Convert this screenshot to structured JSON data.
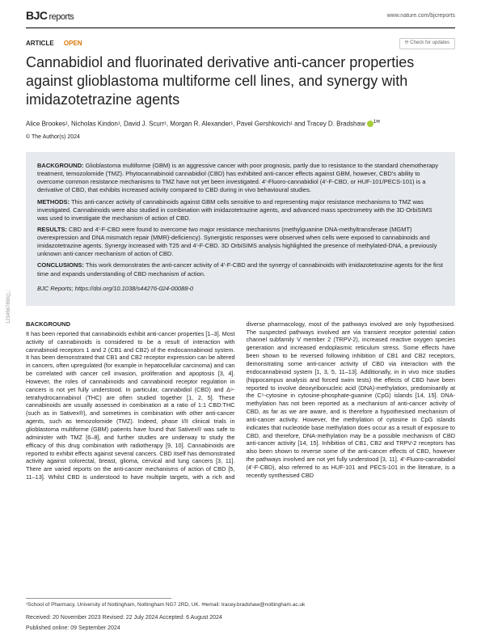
{
  "header": {
    "logo_main": "BJC",
    "logo_sub": "reports",
    "url": "www.nature.com/bjcreports"
  },
  "updates_badge": "Check for updates",
  "article": {
    "type": "ARTICLE",
    "open": "OPEN",
    "title": "Cannabidiol and fluorinated derivative anti-cancer properties against glioblastoma multiforme cell lines, and synergy with imidazotetrazine agents",
    "authors_html": "Alice Brookes¹, Nicholas Kindon¹, David J. Scurr¹, Morgan R. Alexander¹, Pavel Gershkovich¹ and Tracey D. Bradshaw",
    "author_sup": "1✉",
    "copyright": "© The Author(s) 2024"
  },
  "abstract": {
    "background_label": "BACKGROUND:",
    "background": "Glioblastoma multiforme (GBM) is an aggressive cancer with poor prognosis, partly due to resistance to the standard chemotherapy treatment, temozolomide (TMZ). Phytocannabinoid cannabidiol (CBD) has exhibited anti-cancer effects against GBM, however, CBD's ability to overcome common resistance mechanisms to TMZ have not yet been investigated. 4'-Fluoro-cannabidiol (4'-F-CBD, or HUF-101/PECS-101) is a derivative of CBD, that exhibits increased activity compared to CBD during in vivo behavioural studies.",
    "methods_label": "METHODS:",
    "methods": "This anti-cancer activity of cannabinoids against GBM cells sensitive to and representing major resistance mechanisms to TMZ was investigated. Cannabinoids were also studied in combination with imidazotetrazine agents, and advanced mass spectrometry with the 3D OrbiSIMS was used to investigate the mechanism of action of CBD.",
    "results_label": "RESULTS:",
    "results": "CBD and 4'-F-CBD were found to overcome two major resistance mechanisms (methylguanine DNA-methyltransferase (MGMT) overexpression and DNA mismatch repair (MMR)-deficiency). Synergistic responses were observed when cells were exposed to cannabinoids and imidazotetrazine agents. Synergy increased with T25 and 4'-F-CBD. 3D OrbiSIMS analysis highlighted the presence of methylated-DNA, a previously unknown anti-cancer mechanism of action of CBD.",
    "conclusions_label": "CONCLUSIONS:",
    "conclusions": "This work demonstrates the anti-cancer activity of 4'-F-CBD and the synergy of cannabinoids with imidazotetrazine agents for the first time and expands understanding of CBD mechanism of action.",
    "doi_journal": "BJC Reports",
    "doi": "; https://doi.org/10.1038/s44276-024-00088-0"
  },
  "body": {
    "heading": "BACKGROUND",
    "col1": "It has been reported that cannabinoids exhibit anti-cancer properties [1–3]. Most activity of cannabinoids is considered to be a result of interaction with cannabinoid receptors 1 and 2 (CB1 and CB2) of the endocannabinoid system. It has been demonstrated that CB1 and CB2 receptor expression can be altered in cancers, often upregulated (for example in hepatocellular carcinoma) and can be correlated with cancer cell invasion, proliferation and apoptosis [3, 4]. However, the roles of cannabinoids and cannabinoid receptor regulation in cancers is not yet fully understood. In particular, cannabidiol (CBD) and Δ⁹-tetrahydrocannabinol (THC) are often studied together [1, 2, 5]. These cannabinoids are usually assessed in combination at a ratio of 1:1 CBD:THC (such as in Sativex®), and sometimes in combination with other anti-cancer agents, such as temozolomide (TMZ). Indeed, phase I/II clinical trials in glioblastoma multiforme (GBM) patients have found that Sativex® was safe to administer with TMZ [6–8], and further studies are underway to study the efficacy of this drug combination with radiotherapy [9, 10]. Cannabinoids are reported to exhibit effects against several cancers. CBD itself has demonstrated activity against colorectal, breast, glioma, cervical and lung cancers [3, 11]. There are varied reports on the anti-cancer mechanisms of action of CBD [5, 11–13]. Whilst CBD is understood to have",
    "col2": "multiple targets, with a rich and diverse pharmacology, most of the pathways involved are only hypothesised. The suspected pathways involved are via transient receptor potential cation channel subfamily V member 2 (TRPV-2), increased reactive oxygen species generation and increased endoplasmic reticulum stress. Some effects have been shown to be reversed following inhibition of CB1 and CB2 receptors, demonstrating some anti-cancer activity of CBD via interaction with the endocannabinoid system [1, 3, 5, 11–13]. Additionally, in in vivo mice studies (hippocampus analysis and forced swim tests) the effects of CBD have been reported to involve deoxyribonucleic acid (DNA)-methylation, predominantly at the C⁵-cytosine in cytosine-phosphate-guanine (CpG) islands [14, 15]. DNA-methylation has not been reported as a mechanism of anti-cancer activity of CBD, as far as we are aware, and is therefore a hypothesised mechanism of anti-cancer activity. However, the methylation of cytosine in CpG islands indicates that nucleotide base methylation does occur as a result of exposure to CBD, and therefore, DNA-methylation may be a possible mechanism of CBD anti-cancer activity [14, 15]. Inhibition of CB1, CB2 and TRPV-2 receptors has also been shown to reverse some of the anti-cancer effects of CBD, however the pathways involved are not yet fully understood [3, 11]. 4'-Fluoro-cannabidiol (4'-F-CBD), also referred to as HUF-101 and PECS-101 in the literature, is a recently synthesised CBD"
  },
  "footer": {
    "affil": "¹School of Pharmacy, University of Nottingham, Nottingham NG7 2RD, UK. ✉email: tracey.bradshaw@nottingham.ac.uk",
    "dates": "Received: 20 November 2023 Revised: 22 July 2024 Accepted: 6 August 2024",
    "pub": "Published online: 09 September 2024"
  },
  "side": "1234567890();,:"
}
